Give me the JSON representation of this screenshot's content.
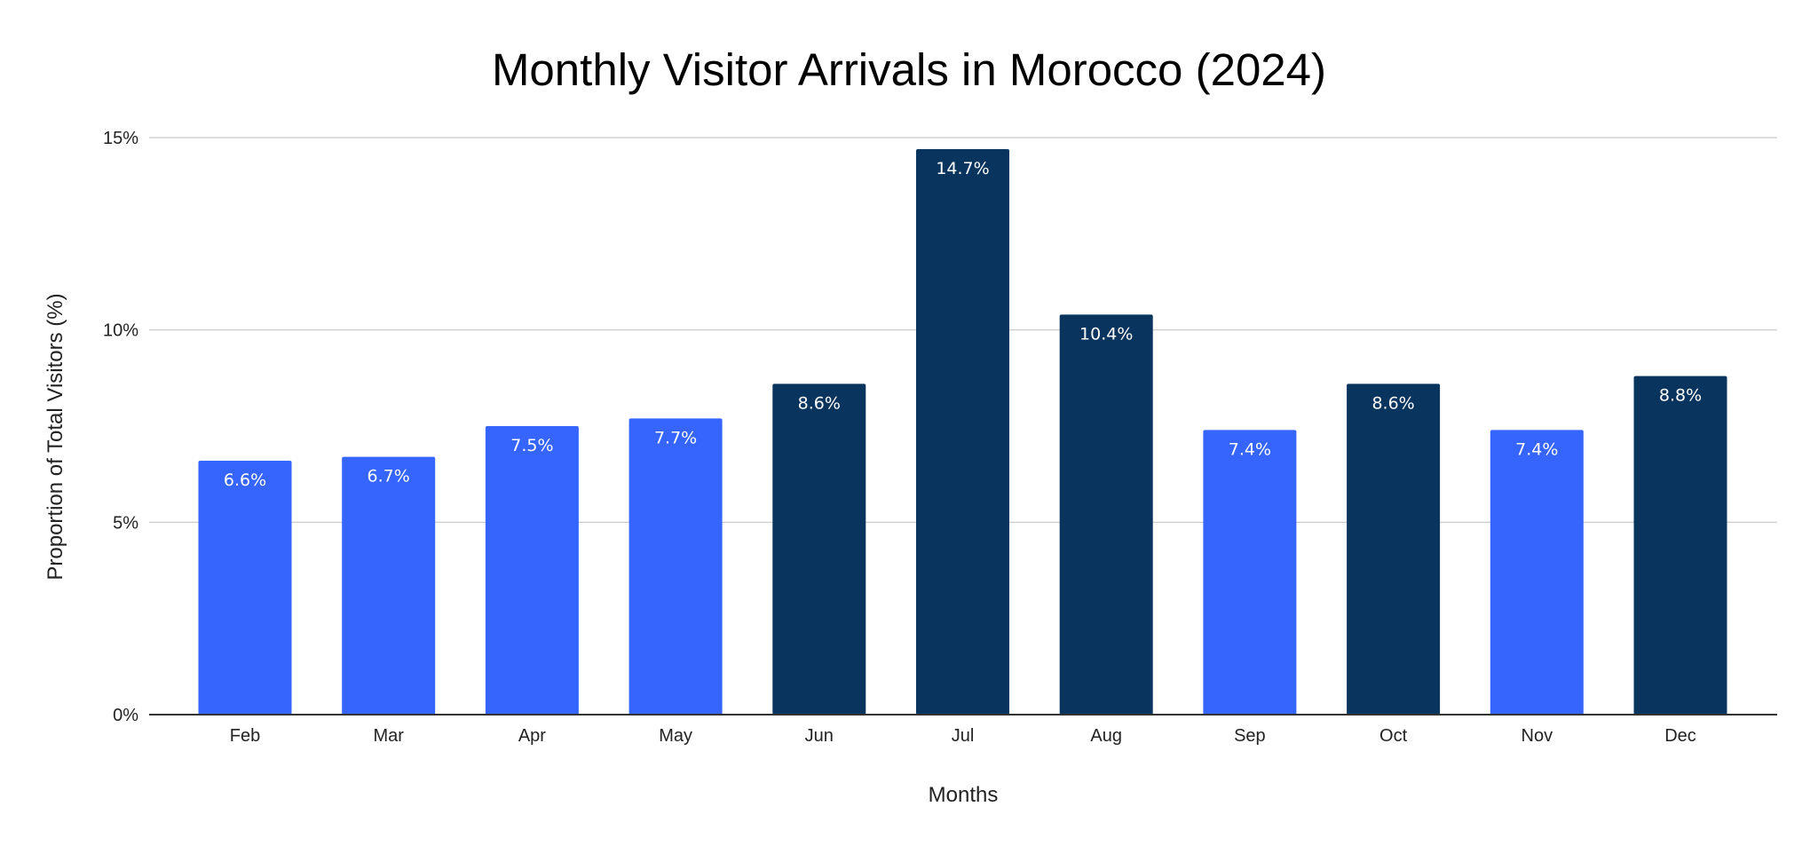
{
  "chart_data": {
    "type": "bar",
    "title": "Monthly Visitor Arrivals in Morocco (2024)",
    "xlabel": "Months",
    "ylabel": "Proportion of Total Visitors (%)",
    "categories": [
      "Feb",
      "Mar",
      "Apr",
      "May",
      "Jun",
      "Jul",
      "Aug",
      "Sep",
      "Oct",
      "Nov",
      "Dec"
    ],
    "values": [
      6.6,
      6.7,
      7.5,
      7.7,
      8.6,
      14.7,
      10.4,
      7.4,
      8.6,
      7.4,
      8.8
    ],
    "data_labels": [
      "6.6%",
      "6.7%",
      "7.5%",
      "7.7%",
      "8.6%",
      "14.7%",
      "10.4%",
      "7.4%",
      "8.6%",
      "7.4%",
      "8.8%"
    ],
    "bar_colors": [
      "#3565fd",
      "#3565fd",
      "#3565fd",
      "#3565fd",
      "#09345e",
      "#09345e",
      "#09345e",
      "#3565fd",
      "#09345e",
      "#3565fd",
      "#09345e"
    ],
    "ylim": [
      0,
      15
    ],
    "yticks": [
      0,
      5,
      10,
      15
    ],
    "ytick_labels": [
      "0%",
      "5%",
      "10%",
      "15%"
    ],
    "grid": true,
    "legend": "none",
    "colors": {
      "light_bar": "#3565fd",
      "dark_bar": "#09345e",
      "grid": "#c6c6c6",
      "axis": "#333333"
    }
  }
}
